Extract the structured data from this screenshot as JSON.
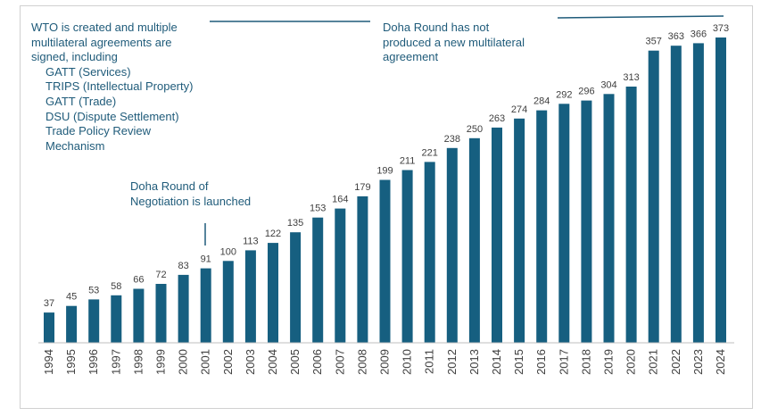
{
  "chart_data": {
    "type": "bar",
    "categories": [
      "1994",
      "1995",
      "1996",
      "1997",
      "1998",
      "1999",
      "2000",
      "2001",
      "2002",
      "2003",
      "2004",
      "2005",
      "2006",
      "2007",
      "2008",
      "2009",
      "2010",
      "2011",
      "2012",
      "2013",
      "2014",
      "2015",
      "2016",
      "2017",
      "2018",
      "2019",
      "2020",
      "2021",
      "2022",
      "2023",
      "2024"
    ],
    "values": [
      37,
      45,
      53,
      58,
      66,
      72,
      83,
      91,
      100,
      113,
      122,
      135,
      153,
      164,
      179,
      199,
      211,
      221,
      238,
      250,
      263,
      274,
      284,
      292,
      296,
      304,
      313,
      357,
      363,
      366,
      373
    ],
    "title": "",
    "xlabel": "",
    "ylabel": "",
    "ylim": [
      0,
      400
    ],
    "bar_color": "#165f80",
    "grid": false,
    "legend": "none"
  },
  "annotations": {
    "wto": {
      "lines": [
        "WTO is created and multiple",
        "multilateral agreements are",
        "signed, including"
      ],
      "items": [
        "GATT (Services)",
        "TRIPS (Intellectual Property)",
        "GATT (Trade)",
        "DSU (Dispute Settlement)",
        "Trade Policy Review",
        "Mechanism"
      ]
    },
    "doha_launch": {
      "lines": [
        "Doha Round of",
        "Negotiation is launched"
      ]
    },
    "doha_no_agreement": {
      "lines": [
        "Doha Round has not",
        "produced a new multilateral",
        "agreement"
      ]
    }
  },
  "colors": {
    "annotation": "#1f5b7a",
    "line": "#1f5b7a",
    "axis": "#bfbfbf"
  }
}
